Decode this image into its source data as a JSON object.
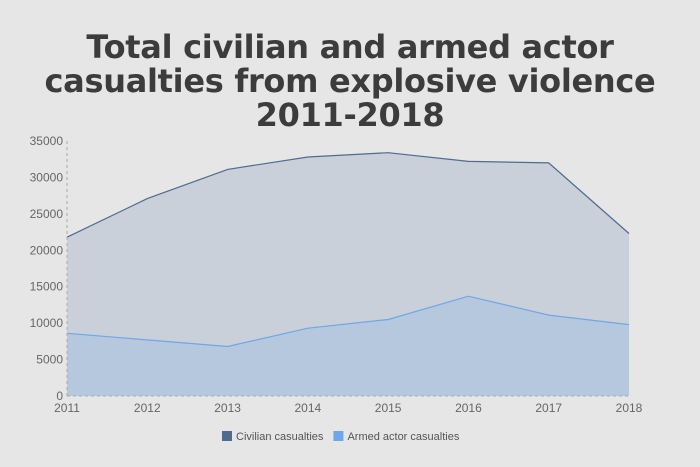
{
  "title_lines": [
    "Total civilian and armed actor",
    "casualties from explosive violence",
    "2011-2018"
  ],
  "chart_data": {
    "type": "area",
    "title": "Total civilian and armed actor casualties from explosive violence 2011-2018",
    "xlabel": "",
    "ylabel": "",
    "categories": [
      "2011",
      "2012",
      "2013",
      "2014",
      "2015",
      "2016",
      "2017",
      "2018"
    ],
    "ylim": [
      0,
      35000
    ],
    "yticks": [
      0,
      5000,
      10000,
      15000,
      20000,
      25000,
      30000,
      35000
    ],
    "grid": false,
    "legend_position": "bottom",
    "series": [
      {
        "name": "Civilian casualties",
        "values": [
          21800,
          27100,
          31100,
          32800,
          33400,
          32200,
          32000,
          22300
        ],
        "color": "#4f6b8f",
        "fill": "#c9d0d9"
      },
      {
        "name": "Armed actor casualties",
        "values": [
          8600,
          7700,
          6800,
          9300,
          10500,
          13700,
          11100,
          9800
        ],
        "color": "#6fa7e8",
        "fill": "#b5c8dd"
      }
    ]
  }
}
